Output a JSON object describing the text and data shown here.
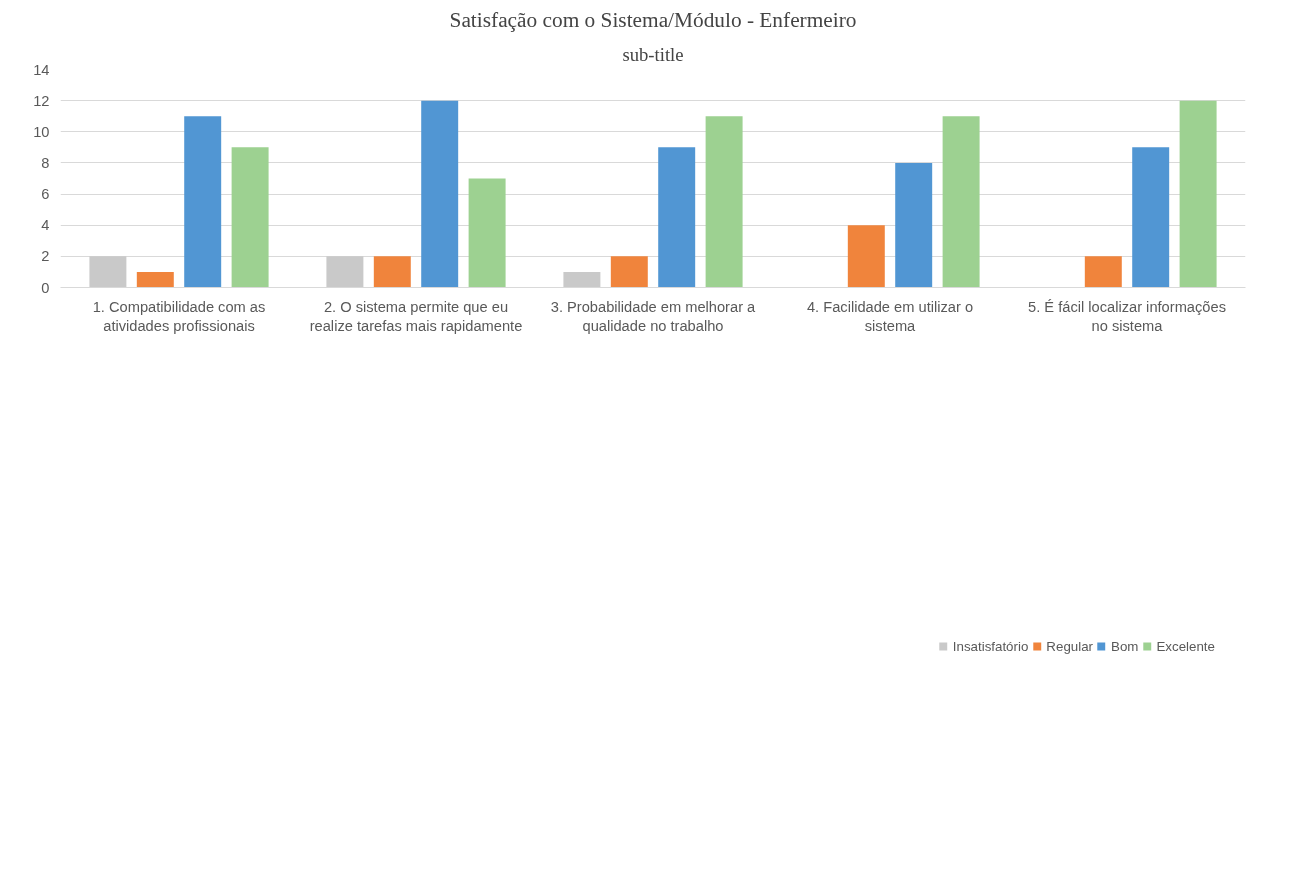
{
  "chart_data": {
    "type": "bar",
    "title": "Satisfação com o Sistema/Módulo - Enfermeiro",
    "subtitle": "sub-title",
    "categories": [
      "1. Compatibilidade com as atividades profissionais",
      "2. O sistema permite que eu realize tarefas mais rapidamente",
      "3. Probabilidade em melhorar a qualidade no trabalho",
      "4. Facilidade em utilizar o sistema",
      "5. É fácil localizar informações no sistema"
    ],
    "series": [
      {
        "name": "Insatisfatório",
        "color": "#c9c9c9",
        "values": [
          2,
          2,
          1,
          0,
          0
        ]
      },
      {
        "name": "Regular",
        "color": "#f0843c",
        "values": [
          1,
          2,
          2,
          4,
          2
        ]
      },
      {
        "name": "Bom",
        "color": "#5196d3",
        "values": [
          11,
          12,
          9,
          8,
          9
        ]
      },
      {
        "name": "Excelente",
        "color": "#9dd191",
        "values": [
          9,
          7,
          11,
          11,
          12
        ]
      }
    ],
    "ylim": [
      0,
      14
    ],
    "yticks": [
      0,
      2,
      4,
      6,
      8,
      10,
      12,
      14
    ],
    "grid": "y",
    "legend": "bottom"
  }
}
